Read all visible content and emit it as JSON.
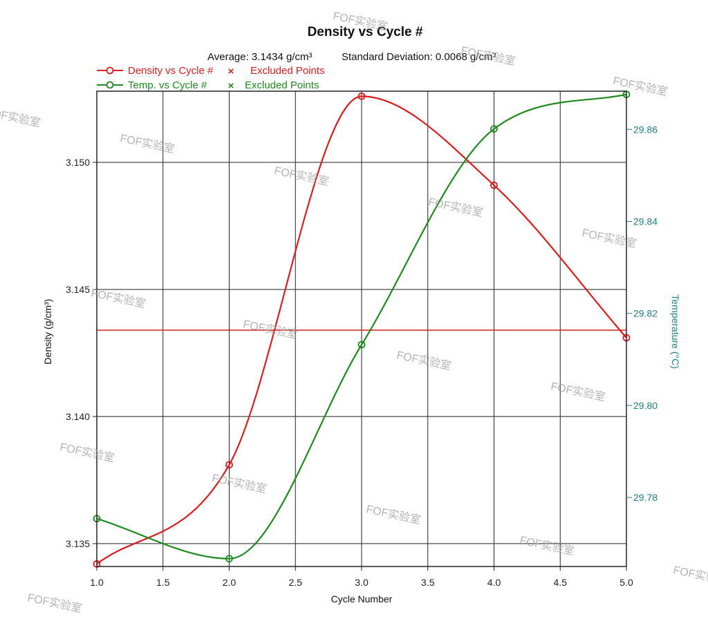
{
  "chart_data": {
    "type": "line",
    "title": "Density vs Cycle #",
    "stats": {
      "average": "Average: 3.1434 g/cm³",
      "std_dev": "Standard Deviation: 0.0068 g/cm³"
    },
    "xlabel": "Cycle Number",
    "ylabel_left": "Density (g/cm³)",
    "ylabel_right": "Temperature (°C)",
    "xlim": [
      1.0,
      5.0
    ],
    "ylim_left": [
      3.1341,
      3.1528
    ],
    "ylim_right": [
      29.765,
      29.8683
    ],
    "x_ticks": [
      "1.0",
      "1.5",
      "2.0",
      "2.5",
      "3.0",
      "3.5",
      "4.0",
      "4.5",
      "5.0"
    ],
    "x_tick_values": [
      1.0,
      1.5,
      2.0,
      2.5,
      3.0,
      3.5,
      4.0,
      4.5,
      5.0
    ],
    "y_left_ticks": [
      "3.135",
      "3.140",
      "3.145",
      "3.150"
    ],
    "y_left_tick_values": [
      3.135,
      3.14,
      3.145,
      3.15
    ],
    "y_right_ticks": [
      "29.78",
      "29.80",
      "29.82",
      "29.84",
      "29.86"
    ],
    "y_right_tick_values": [
      29.78,
      29.8,
      29.82,
      29.84,
      29.86
    ],
    "grid": true,
    "legend_position": "top-left",
    "average_line": {
      "value": 3.1434,
      "color": "#d81e1e"
    },
    "series": [
      {
        "name": "Density vs Cycle #",
        "axis": "left",
        "color": "#d81e1e",
        "x": [
          1,
          2,
          3,
          4,
          5
        ],
        "values": [
          3.1342,
          3.1381,
          3.1526,
          3.1491,
          3.1431
        ],
        "excluded_label": "Excluded Points"
      },
      {
        "name": "Temp. vs Cycle #",
        "axis": "right",
        "color": "#1e8a1e",
        "x": [
          1,
          2,
          3,
          4,
          5
        ],
        "values": [
          29.7754,
          29.7667,
          29.8132,
          29.8601,
          29.8676
        ],
        "excluded_label": "Excluded Points"
      }
    ],
    "excluded_marker": "×",
    "watermark_text": "FOF实验室"
  }
}
